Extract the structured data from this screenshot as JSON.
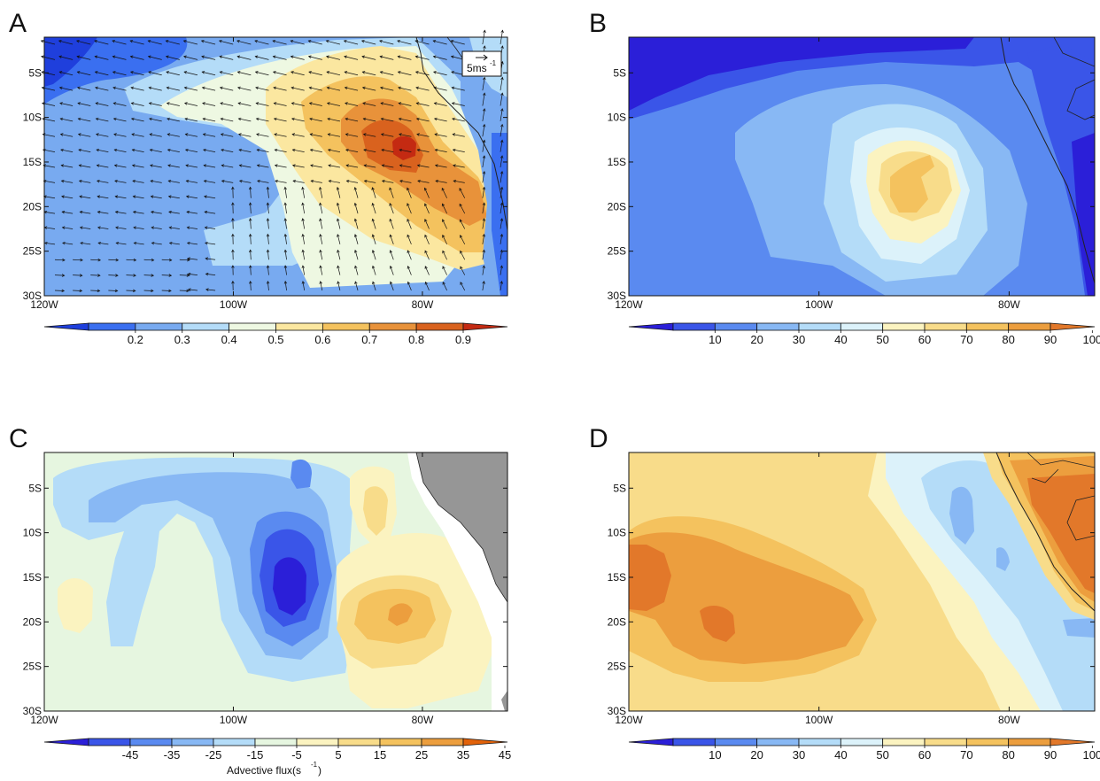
{
  "chart_data": [
    {
      "panel": "A",
      "type": "heatmap",
      "x_ticks": [
        "120W",
        "100W",
        "80W"
      ],
      "y_ticks": [
        "5S",
        "10S",
        "15S",
        "20S",
        "25S",
        "30S"
      ],
      "xlim": [
        -120,
        -71
      ],
      "ylim": [
        -30,
        -1
      ],
      "colorbar_ticks": [
        "0.2",
        "0.3",
        "0.4",
        "0.5",
        "0.6",
        "0.7",
        "0.8",
        "0.9"
      ],
      "colorbar_colors": [
        "#1f3fdc",
        "#3a6ff0",
        "#78aaf0",
        "#b4dcf8",
        "#eef8e2",
        "#fbe7a0",
        "#f4c25e",
        "#e8923a",
        "#d9621e",
        "#c42a12"
      ],
      "reference_vector": "5ms",
      "reference_vector_unit_exp": "-1",
      "overlay": "wind vectors",
      "contour_regions": [
        {
          "level": 0.6,
          "center": [
            -87,
            -12
          ],
          "radius": [
            8,
            11
          ]
        },
        {
          "level": 0.7,
          "center": [
            -85,
            -14
          ],
          "radius": [
            6,
            8
          ]
        },
        {
          "level": 0.8,
          "center": [
            -83,
            -15
          ],
          "radius": [
            4,
            5
          ]
        },
        {
          "level": 0.9,
          "center": [
            -82,
            -13
          ],
          "radius": [
            1.5,
            1.2
          ]
        },
        {
          "level": 0.3,
          "center": [
            -115,
            -4
          ],
          "radius": [
            6,
            4
          ]
        },
        {
          "level": 0.2,
          "center": [
            -118,
            -3
          ],
          "radius": [
            3,
            2
          ]
        }
      ]
    },
    {
      "panel": "B",
      "type": "heatmap",
      "x_ticks": [
        "120W",
        "100W",
        "80W"
      ],
      "y_ticks": [
        "5S",
        "10S",
        "15S",
        "20S",
        "25S",
        "30S"
      ],
      "xlim": [
        -120,
        -71
      ],
      "ylim": [
        -30,
        -1
      ],
      "colorbar_ticks": [
        "10",
        "20",
        "30",
        "40",
        "50",
        "60",
        "70",
        "80",
        "90",
        "100"
      ],
      "colorbar_colors": [
        "#2b1fd8",
        "#3a55e8",
        "#5a8af0",
        "#88b8f4",
        "#b4dcf8",
        "#dcf2fa",
        "#fbf3c0",
        "#f8dc8a",
        "#f4c25e",
        "#ec9e3e",
        "#e2782a"
      ],
      "contour_regions": [
        {
          "level": 50,
          "center": [
            -90,
            -17
          ],
          "radius": [
            9,
            10
          ]
        },
        {
          "level": 60,
          "center": [
            -90,
            -18
          ],
          "radius": [
            7,
            8
          ]
        },
        {
          "level": 70,
          "center": [
            -89,
            -18
          ],
          "radius": [
            5,
            5
          ]
        },
        {
          "level": 80,
          "center": [
            -90,
            -18
          ],
          "radius": [
            2.5,
            3
          ]
        },
        {
          "level": 20,
          "center": [
            -100,
            -3
          ],
          "radius": [
            25,
            3
          ]
        }
      ]
    },
    {
      "panel": "C",
      "type": "heatmap",
      "x_ticks": [
        "120W",
        "100W",
        "80W"
      ],
      "y_ticks": [
        "5S",
        "10S",
        "15S",
        "20S",
        "25S",
        "30S"
      ],
      "xlim": [
        -120,
        -71
      ],
      "ylim": [
        -30,
        -1
      ],
      "colorbar_ticks": [
        "-45",
        "-35",
        "-25",
        "-15",
        "-5",
        "5",
        "15",
        "25",
        "35",
        "45"
      ],
      "colorbar_colors": [
        "#2b1fd8",
        "#3a55e8",
        "#5a8af0",
        "#88b8f4",
        "#b4dcf8",
        "#e6f6e0",
        "#fbf3c0",
        "#f8dc8a",
        "#f4c25e",
        "#ec9e3e",
        "#e2620a"
      ],
      "colorbar_label": "Advective flux(s",
      "colorbar_label_exp": "-1",
      "colorbar_label_end": ")",
      "contour_regions": [
        {
          "level": -15,
          "center": [
            -98,
            -10
          ],
          "radius": [
            22,
            7
          ]
        },
        {
          "level": -25,
          "center": [
            -92,
            -16
          ],
          "radius": [
            6,
            8
          ]
        },
        {
          "level": -35,
          "center": [
            -92,
            -16
          ],
          "radius": [
            4,
            5
          ]
        },
        {
          "level": -45,
          "center": [
            -92,
            -16
          ],
          "radius": [
            2,
            3
          ]
        },
        {
          "level": 15,
          "center": [
            -83,
            -19
          ],
          "radius": [
            7,
            6
          ]
        },
        {
          "level": 25,
          "center": [
            -83,
            -19
          ],
          "radius": [
            5,
            3.5
          ]
        },
        {
          "level": 35,
          "center": [
            -82,
            -19
          ],
          "radius": [
            2,
            1.5
          ]
        }
      ]
    },
    {
      "panel": "D",
      "type": "heatmap",
      "x_ticks": [
        "120W",
        "100W",
        "80W"
      ],
      "y_ticks": [
        "5S",
        "10S",
        "15S",
        "20S",
        "25S",
        "30S"
      ],
      "xlim": [
        -120,
        -71
      ],
      "ylim": [
        -30,
        -1
      ],
      "colorbar_ticks": [
        "10",
        "20",
        "30",
        "40",
        "50",
        "60",
        "70",
        "80",
        "90",
        "100"
      ],
      "colorbar_colors": [
        "#2b1fd8",
        "#3a55e8",
        "#5a8af0",
        "#88b8f4",
        "#b4dcf8",
        "#dcf2fa",
        "#fbf3c0",
        "#f8dc8a",
        "#f4c25e",
        "#ec9e3e",
        "#e2782a"
      ],
      "contour_regions": [
        {
          "level": 90,
          "center": [
            -108,
            -17
          ],
          "radius": [
            12,
            6
          ]
        },
        {
          "level": 40,
          "center": [
            -82,
            -8
          ],
          "radius": [
            6,
            8
          ]
        },
        {
          "level": 90,
          "center": [
            -74,
            -10
          ],
          "radius": [
            4,
            7
          ]
        }
      ]
    }
  ],
  "panels": {
    "a": {
      "label": "A"
    },
    "b": {
      "label": "B"
    },
    "c": {
      "label": "C"
    },
    "d": {
      "label": "D"
    }
  }
}
